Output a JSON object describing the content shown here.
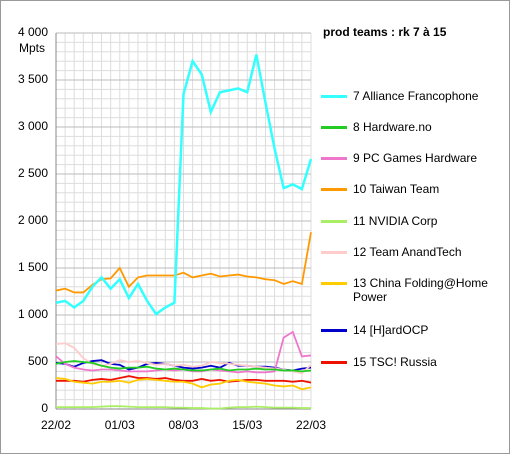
{
  "chart_data": {
    "type": "line",
    "title": "prod teams : rk 7 à 15",
    "y_label": "Mpts",
    "categories": [
      "22/02",
      null,
      null,
      null,
      null,
      null,
      null,
      "01/03",
      null,
      null,
      null,
      null,
      null,
      null,
      "08/03",
      null,
      null,
      null,
      null,
      null,
      null,
      "15/03",
      null,
      null,
      null,
      null,
      null,
      null,
      "22/03"
    ],
    "ylim": [
      0,
      4000
    ],
    "yticks": [
      0,
      500,
      {
        "value": 1000,
        "label": "1 000"
      },
      {
        "value": 1500,
        "label": "1 500"
      },
      {
        "value": 2000,
        "label": "2 000"
      },
      {
        "value": 2500,
        "label": "2 500"
      },
      {
        "value": 3000,
        "label": "3 000"
      },
      {
        "value": 3500,
        "label": "3 500"
      },
      {
        "value": 4000,
        "label": "4 000"
      }
    ],
    "grid": true,
    "series": [
      {
        "name": "7 Alliance Francophone",
        "color": "#33ffff",
        "values": [
          1130,
          1150,
          1080,
          1150,
          1300,
          1400,
          1280,
          1380,
          1180,
          1330,
          1150,
          1010,
          1080,
          1130,
          3350,
          3700,
          3560,
          3160,
          3370,
          3390,
          3410,
          3370,
          3770,
          3260,
          2770,
          2350,
          2390,
          2340,
          2660
        ]
      },
      {
        "name": "8 Hardware.no",
        "color": "#22cc22",
        "values": [
          480,
          500,
          510,
          500,
          490,
          460,
          440,
          430,
          440,
          440,
          450,
          430,
          420,
          430,
          420,
          410,
          410,
          420,
          430,
          410,
          420,
          420,
          430,
          420,
          420,
          410,
          410,
          400,
          410
        ]
      },
      {
        "name": "9 PC Games Hardware",
        "color": "#ee77cc",
        "values": [
          560,
          480,
          440,
          420,
          410,
          420,
          420,
          410,
          400,
          400,
          400,
          410,
          420,
          410,
          420,
          400,
          400,
          420,
          410,
          400,
          390,
          400,
          390,
          390,
          400,
          760,
          820,
          560,
          570
        ]
      },
      {
        "name": "10 Taiwan Team",
        "color": "#ff9900",
        "values": [
          1260,
          1280,
          1240,
          1240,
          1320,
          1380,
          1390,
          1500,
          1300,
          1400,
          1420,
          1420,
          1420,
          1420,
          1450,
          1400,
          1420,
          1440,
          1410,
          1420,
          1430,
          1410,
          1400,
          1380,
          1370,
          1330,
          1360,
          1330,
          1880
        ]
      },
      {
        "name": "11 NVIDIA Corp",
        "color": "#aaee66",
        "values": [
          20,
          20,
          20,
          20,
          20,
          25,
          30,
          30,
          25,
          20,
          20,
          20,
          20,
          15,
          15,
          10,
          10,
          5,
          5,
          15,
          20,
          20,
          25,
          20,
          15,
          15,
          15,
          10,
          10
        ]
      },
      {
        "name": "12 Team AnandTech",
        "color": "#ffcccc",
        "values": [
          690,
          700,
          650,
          540,
          480,
          460,
          480,
          520,
          500,
          510,
          490,
          470,
          480,
          460,
          470,
          450,
          460,
          500,
          490,
          480,
          470,
          460,
          450,
          440,
          430,
          420,
          400,
          380,
          470
        ]
      },
      {
        "name": "13 China Folding@Home Power",
        "color": "#ffcc00",
        "values": [
          330,
          320,
          290,
          280,
          270,
          290,
          290,
          300,
          280,
          310,
          320,
          310,
          300,
          290,
          290,
          270,
          230,
          260,
          270,
          300,
          310,
          290,
          280,
          270,
          250,
          240,
          250,
          210,
          230
        ]
      },
      {
        "name": "14 [H]ardOCP",
        "color": "#0000cc",
        "values": [
          490,
          480,
          450,
          490,
          510,
          520,
          480,
          470,
          420,
          440,
          480,
          490,
          480,
          460,
          440,
          430,
          440,
          460,
          440,
          490,
          460,
          460,
          450,
          450,
          440,
          420,
          410,
          430,
          440
        ]
      },
      {
        "name": "15 TSC! Russia",
        "color": "#ee1100",
        "values": [
          300,
          300,
          300,
          290,
          310,
          320,
          310,
          330,
          350,
          330,
          330,
          320,
          330,
          310,
          300,
          300,
          320,
          300,
          310,
          290,
          300,
          310,
          310,
          300,
          300,
          300,
          290,
          300,
          280
        ]
      }
    ]
  }
}
